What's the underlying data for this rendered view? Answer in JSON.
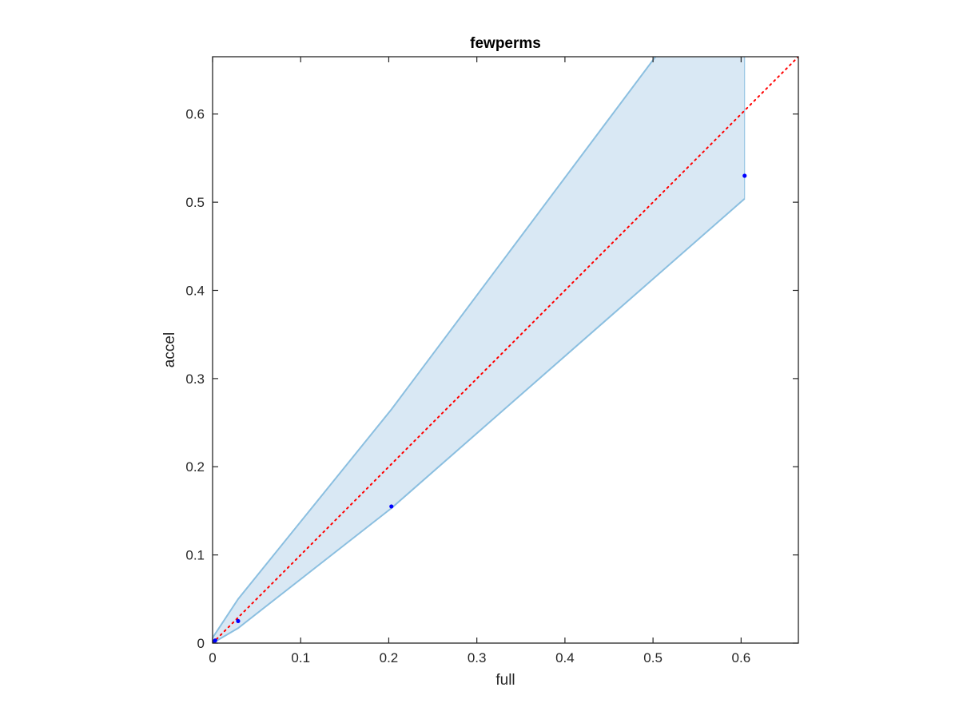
{
  "chart_data": {
    "type": "scatter",
    "title": "fewperms",
    "xlabel": "full",
    "ylabel": "accel",
    "xlim": [
      0,
      0.665
    ],
    "ylim": [
      0,
      0.665
    ],
    "xticks": [
      "0",
      "0.1",
      "0.2",
      "0.3",
      "0.4",
      "0.5",
      "0.6"
    ],
    "yticks": [
      "0",
      "0.1",
      "0.2",
      "0.3",
      "0.4",
      "0.5",
      "0.6"
    ],
    "grid": false,
    "series": [
      {
        "type": "scatter",
        "color": "#0000ff",
        "x": [
          0.0,
          0.001,
          0.002,
          0.003,
          0.029,
          0.203,
          0.604
        ],
        "y": [
          0.0,
          0.001,
          0.002,
          0.003,
          0.025,
          0.155,
          0.53
        ]
      },
      {
        "type": "band",
        "fill": "#d9e8f4",
        "stroke": "#8bbfe0",
        "x": [
          0.0,
          0.029,
          0.203,
          0.604
        ],
        "upper": [
          0.006,
          0.05,
          0.265,
          0.8
        ],
        "lower": [
          0.0,
          0.017,
          0.153,
          0.504
        ]
      },
      {
        "type": "reference-line",
        "style": "dotted",
        "color": "#ff0000",
        "x": [
          0,
          0.665
        ],
        "y": [
          0,
          0.665
        ]
      }
    ]
  }
}
